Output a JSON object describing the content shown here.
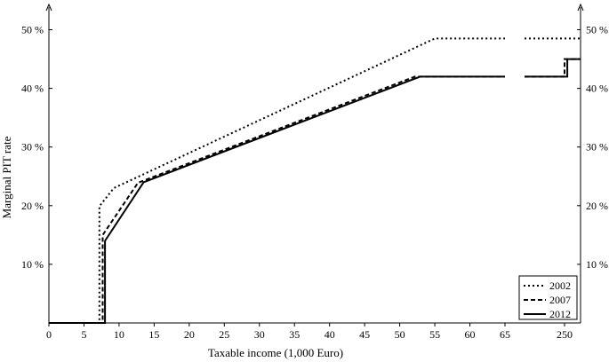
{
  "chart_data": {
    "type": "line",
    "xlabel": "Taxable income (1,000 Euro)",
    "ylabel": "Marginal PIT rate",
    "x_ticks": [
      "0",
      "5",
      "10",
      "15",
      "20",
      "25",
      "30",
      "35",
      "40",
      "45",
      "50",
      "55",
      "60",
      "65",
      "250"
    ],
    "y_ticks": [
      "10 %",
      "20 %",
      "30 %",
      "40 %",
      "50 %"
    ],
    "xlim_main": [
      0,
      65
    ],
    "xlim_break": [
      240,
      254
    ],
    "ylim": [
      0,
      54
    ],
    "grid": false,
    "legend_position": "bottom-right",
    "series": [
      {
        "name": "2002",
        "style": "dotted",
        "main": [
          [
            0,
            0
          ],
          [
            7.2,
            0
          ],
          [
            7.2,
            19.9
          ],
          [
            9.25,
            23
          ],
          [
            55,
            48.5
          ],
          [
            65,
            48.5
          ]
        ],
        "tail": [
          [
            240,
            48.5
          ],
          [
            254,
            48.5
          ]
        ]
      },
      {
        "name": "2007",
        "style": "dashed",
        "main": [
          [
            0,
            0
          ],
          [
            7.66,
            0
          ],
          [
            7.66,
            15
          ],
          [
            12.7,
            23.9
          ],
          [
            52.15,
            42
          ],
          [
            65,
            42
          ]
        ],
        "tail": [
          [
            240,
            42
          ],
          [
            250,
            42
          ],
          [
            250,
            45
          ],
          [
            254,
            45
          ]
        ]
      },
      {
        "name": "2012",
        "style": "solid",
        "main": [
          [
            0,
            0
          ],
          [
            8,
            0
          ],
          [
            8,
            14
          ],
          [
            13.5,
            24
          ],
          [
            52.9,
            42
          ],
          [
            65,
            42
          ]
        ],
        "tail": [
          [
            240,
            42
          ],
          [
            250.7,
            42
          ],
          [
            250.7,
            45
          ],
          [
            254,
            45
          ]
        ]
      }
    ]
  }
}
